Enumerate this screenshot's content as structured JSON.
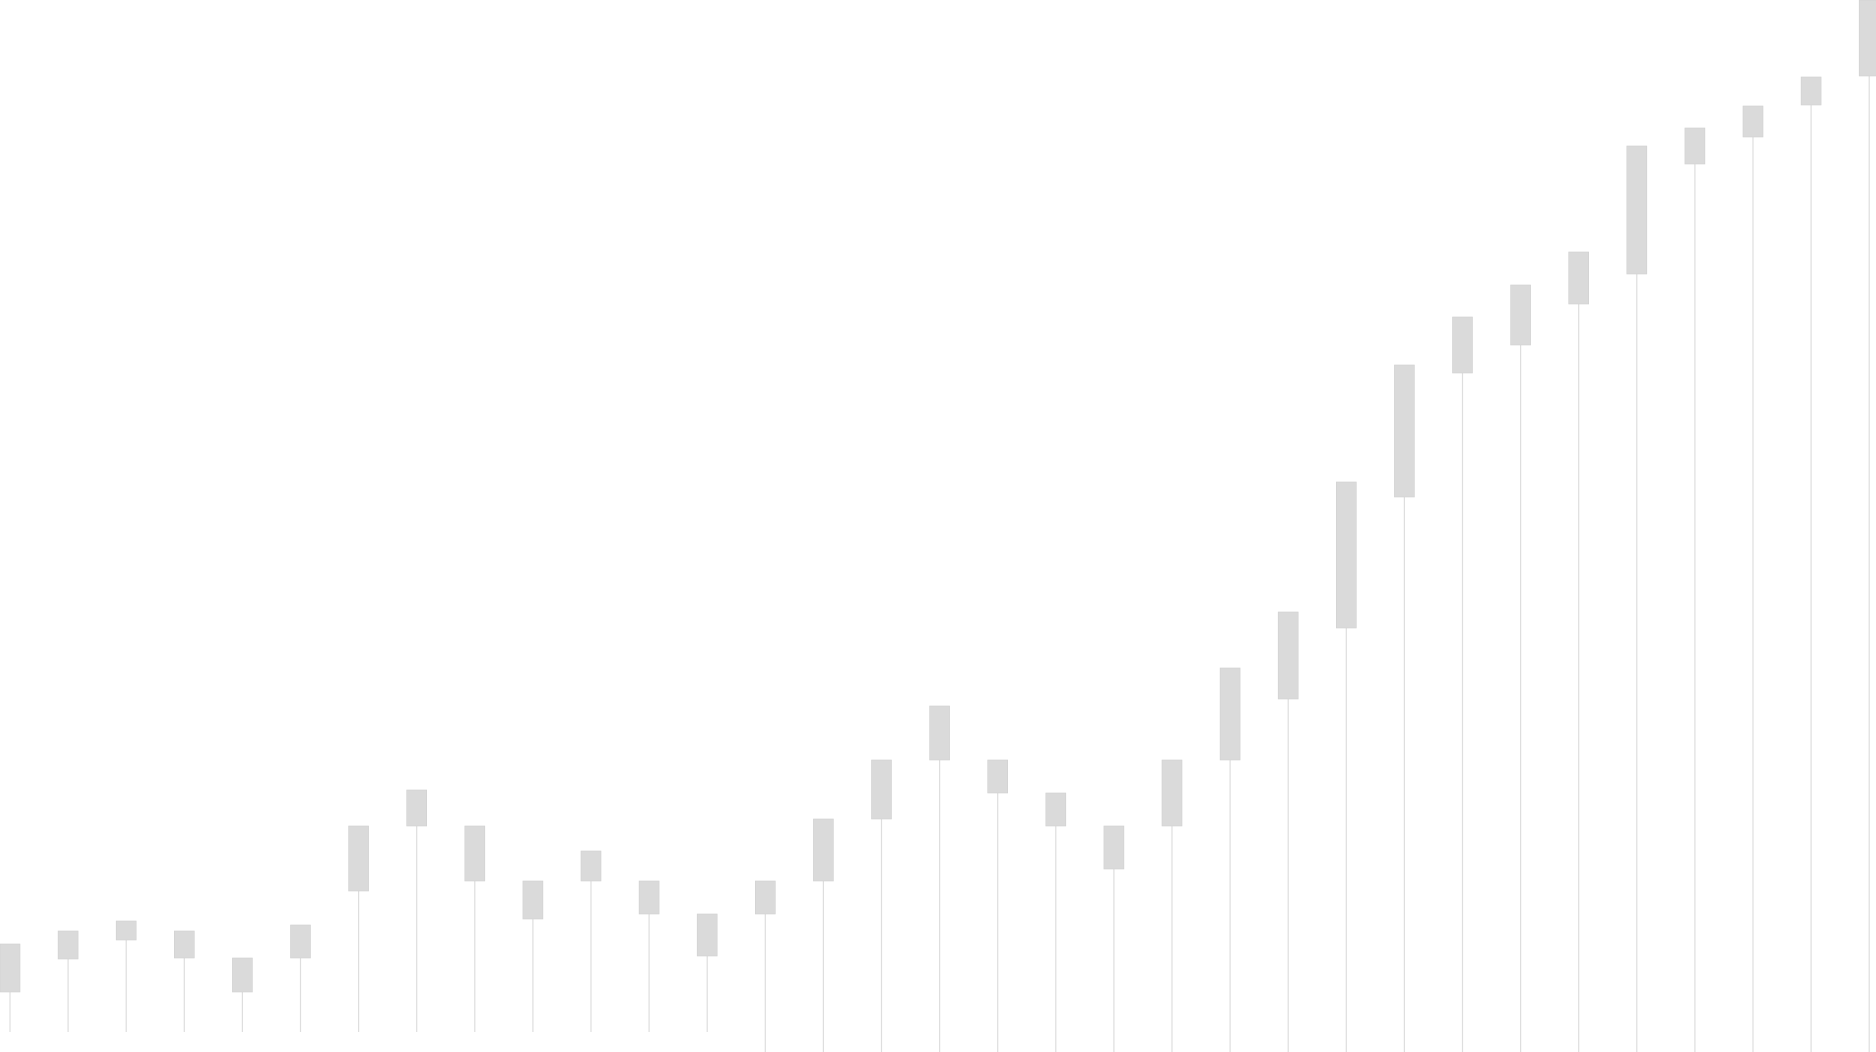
{
  "chart_data": {
    "type": "candlestick",
    "grid": false,
    "legend": "none",
    "colors": {
      "body": "#dadada",
      "wick": "#dedede"
    },
    "ylim": [
      0,
      1052
    ],
    "candles": [
      {
        "low": 20,
        "bottom": 60,
        "top": 108
      },
      {
        "low": 20,
        "bottom": 93,
        "top": 121
      },
      {
        "low": 20,
        "bottom": 112,
        "top": 131
      },
      {
        "low": 20,
        "bottom": 94,
        "top": 121
      },
      {
        "low": 20,
        "bottom": 60,
        "top": 94
      },
      {
        "low": 20,
        "bottom": 94,
        "top": 127
      },
      {
        "low": 20,
        "bottom": 161,
        "top": 226
      },
      {
        "low": 20,
        "bottom": 226,
        "top": 262
      },
      {
        "low": 20,
        "bottom": 171,
        "top": 226
      },
      {
        "low": 20,
        "bottom": 133,
        "top": 171
      },
      {
        "low": 20,
        "bottom": 171,
        "top": 201
      },
      {
        "low": 20,
        "bottom": 138,
        "top": 171
      },
      {
        "low": 20,
        "bottom": 96,
        "top": 138
      },
      {
        "low": 0,
        "bottom": 138,
        "top": 171
      },
      {
        "low": 0,
        "bottom": 171,
        "top": 233
      },
      {
        "low": 0,
        "bottom": 233,
        "top": 292
      },
      {
        "low": 0,
        "bottom": 292,
        "top": 346
      },
      {
        "low": 0,
        "bottom": 259,
        "top": 292
      },
      {
        "low": 0,
        "bottom": 226,
        "top": 259
      },
      {
        "low": 0,
        "bottom": 183,
        "top": 226
      },
      {
        "low": 0,
        "bottom": 226,
        "top": 292
      },
      {
        "low": 0,
        "bottom": 292,
        "top": 384
      },
      {
        "low": 0,
        "bottom": 353,
        "top": 440
      },
      {
        "low": 0,
        "bottom": 424,
        "top": 570
      },
      {
        "low": 0,
        "bottom": 555,
        "top": 687
      },
      {
        "low": 0,
        "bottom": 679,
        "top": 735
      },
      {
        "low": 0,
        "bottom": 707,
        "top": 767
      },
      {
        "low": 0,
        "bottom": 748,
        "top": 800
      },
      {
        "low": 0,
        "bottom": 778,
        "top": 906
      },
      {
        "low": 0,
        "bottom": 888,
        "top": 924
      },
      {
        "low": 0,
        "bottom": 915,
        "top": 946
      },
      {
        "low": 0,
        "bottom": 947,
        "top": 975
      },
      {
        "low": 0,
        "bottom": 976,
        "top": 1052
      }
    ]
  }
}
